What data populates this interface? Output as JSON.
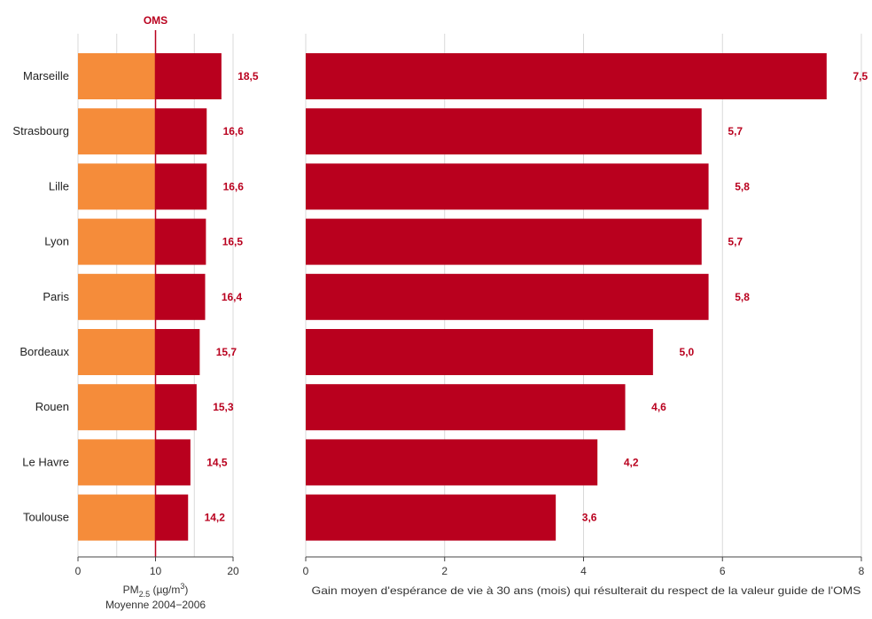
{
  "colors": {
    "pm_base": "#F58C3A",
    "bar": "#B9001E",
    "label_text": "#B9001E",
    "grid": "#D9D9D9",
    "axis": "#444444"
  },
  "chart_data": [
    {
      "type": "bar",
      "orientation": "horizontal",
      "categories": [
        "Marseille",
        "Strasbourg",
        "Lille",
        "Lyon",
        "Paris",
        "Bordeaux",
        "Rouen",
        "Le Havre",
        "Toulouse"
      ],
      "values": [
        18.5,
        16.6,
        16.6,
        16.5,
        16.4,
        15.7,
        15.3,
        14.5,
        14.2
      ],
      "value_labels": [
        "18,5",
        "16,6",
        "16,6",
        "16,5",
        "16,4",
        "15,7",
        "15,3",
        "14,5",
        "14,2"
      ],
      "xlim": [
        0,
        20
      ],
      "xticks": [
        0,
        10,
        20
      ],
      "xtick_labels": [
        "0",
        "10",
        "20"
      ],
      "xlabel": "PM2.5 (µg/m3)",
      "xlabel_parts": {
        "base": "PM",
        "sub": "2.5",
        "mid": " (µg/m",
        "sup": "3",
        "end": ")"
      },
      "xlabel_line2": "Moyenne 2004−2006",
      "reference_line": {
        "label": "OMS",
        "value": 10
      },
      "grid": true
    },
    {
      "type": "bar",
      "orientation": "horizontal",
      "categories": [
        "Marseille",
        "Strasbourg",
        "Lille",
        "Lyon",
        "Paris",
        "Bordeaux",
        "Rouen",
        "Le Havre",
        "Toulouse"
      ],
      "values": [
        7.5,
        5.7,
        5.8,
        5.7,
        5.8,
        5.0,
        4.6,
        4.2,
        3.6
      ],
      "value_labels": [
        "7,5",
        "5,7",
        "5,8",
        "5,7",
        "5,8",
        "5,0",
        "4,6",
        "4,2",
        "3,6"
      ],
      "xlim": [
        0,
        8
      ],
      "xticks": [
        0,
        2,
        4,
        6,
        8
      ],
      "xtick_labels": [
        "0",
        "2",
        "4",
        "6",
        "8"
      ],
      "xlabel": "Gain moyen d'espérance de vie à 30 ans (mois) qui résulterait du respect de la valeur guide de l'OMS",
      "grid": true
    }
  ]
}
